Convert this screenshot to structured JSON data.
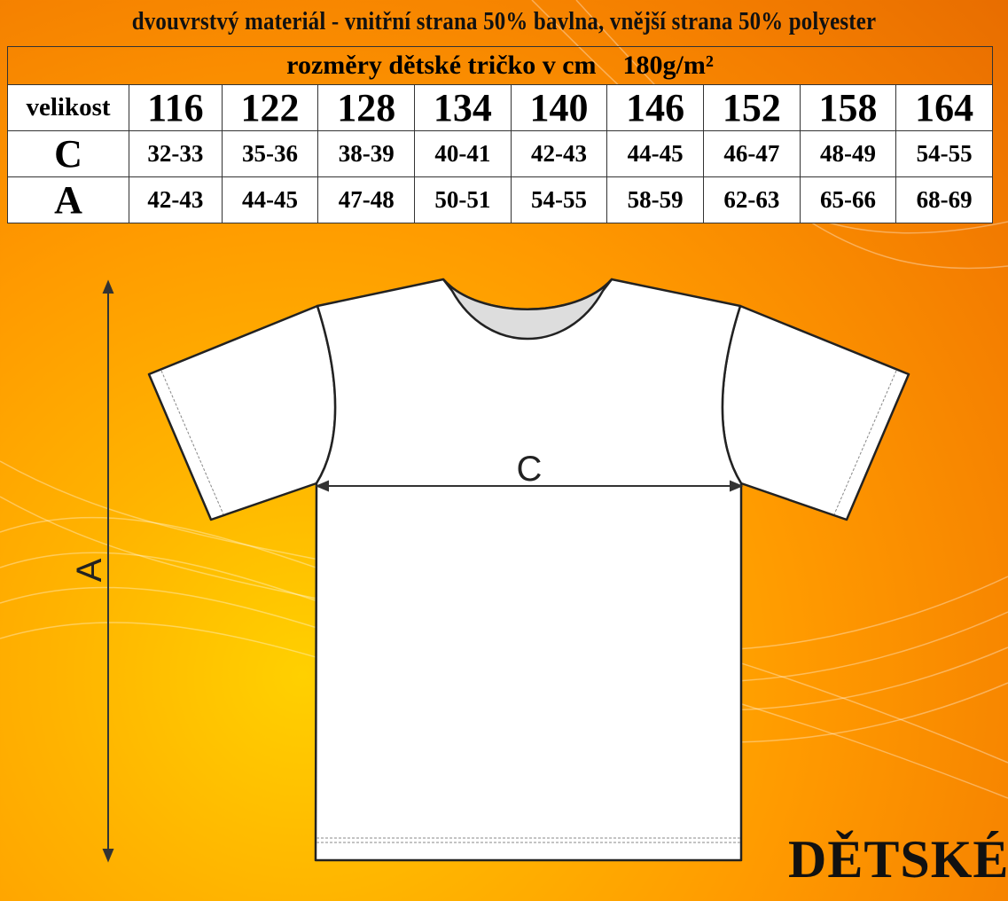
{
  "material_title": "dvouvrstvý materiál - vnitřní strana 50% bavlna, vnější strana 50% polyester",
  "table": {
    "subtitle": "rozměry dětské tričko v cm    180g/m²",
    "size_label": "velikost",
    "sizes": [
      "116",
      "122",
      "128",
      "134",
      "140",
      "146",
      "152",
      "158",
      "164"
    ],
    "rows": [
      {
        "label": "C",
        "values": [
          "32-33",
          "35-36",
          "38-39",
          "40-41",
          "42-43",
          "44-45",
          "46-47",
          "48-49",
          "54-55"
        ]
      },
      {
        "label": "A",
        "values": [
          "42-43",
          "44-45",
          "47-48",
          "50-51",
          "54-55",
          "58-59",
          "62-63",
          "65-66",
          "68-69"
        ]
      }
    ]
  },
  "diagram": {
    "width_label": "C",
    "length_label": "A"
  },
  "category_label": "DĚTSKÉ",
  "colors": {
    "background": "#ff9a00",
    "highlight": "#ffd000"
  }
}
